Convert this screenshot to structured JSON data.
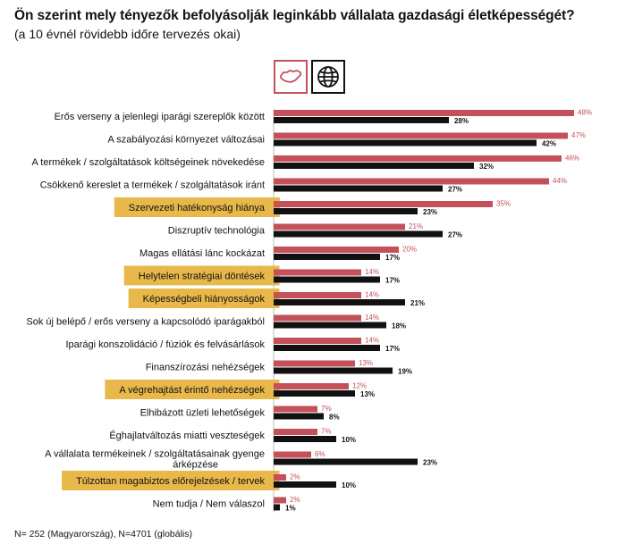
{
  "title": "Ön szerint mely tényezők befolyásolják leginkább vállalata gazdasági életképességét?",
  "subtitle": "(a 10 évnél rövidebb időre tervezés okai)",
  "footnote": "N= 252 (Magyarország), N=4701 (globális)",
  "legend": [
    {
      "icon": "hungary-map-icon",
      "color": "#c4505a"
    },
    {
      "icon": "globe-icon",
      "color": "#111111"
    }
  ],
  "colors": {
    "hungary": "#c4505a",
    "global": "#111111",
    "highlight": "#e8b84b"
  },
  "chart_data": {
    "type": "bar",
    "orientation": "horizontal",
    "title": "Ön szerint mely tényezők befolyásolják leginkább vállalata gazdasági életképességét?",
    "subtitle": "(a 10 évnél rövidebb időre tervezés okai)",
    "categories": [
      "Erős verseny a jelenlegi iparági szereplők között",
      "A szabályozási környezet változásai",
      "A termékek / szolgáltatások költségeinek növekedése",
      "Csökkenő kereslet a termékek / szolgáltatások iránt",
      "Szervezeti hatékonyság hiánya",
      "Diszruptív technológia",
      "Magas ellátási lánc kockázat",
      "Helytelen stratégiai döntések",
      "Képességbeli hiányosságok",
      "Sok új belépő / erős verseny a kapcsolódó iparágakból",
      "Iparági konszolidáció / fúziók és felvásárlások",
      "Finanszírozási nehézségek",
      "A végrehajtást érintő nehézségek",
      "Elhibázott üzleti lehetőségek",
      "Éghajlatváltozás miatti veszteségek",
      "A vállalata termékeinek / szolgáltatásainak gyenge árképzése",
      "Túlzottan magabiztos előrejelzések / tervek",
      "Nem tudja / Nem válaszol"
    ],
    "highlighted": [
      false,
      false,
      false,
      false,
      true,
      false,
      false,
      true,
      true,
      false,
      false,
      false,
      true,
      false,
      false,
      false,
      true,
      false
    ],
    "series": [
      {
        "values": [
          48,
          47,
          46,
          44,
          35,
          21,
          20,
          14,
          14,
          14,
          14,
          13,
          12,
          7,
          7,
          6,
          2,
          2
        ],
        "color": "#c4505a"
      },
      {
        "values": [
          28,
          42,
          32,
          27,
          23,
          27,
          17,
          17,
          21,
          18,
          17,
          19,
          13,
          8,
          10,
          23,
          10,
          1
        ],
        "color": "#111111"
      }
    ],
    "value_suffix": "%",
    "xlim": [
      0,
      48
    ]
  }
}
